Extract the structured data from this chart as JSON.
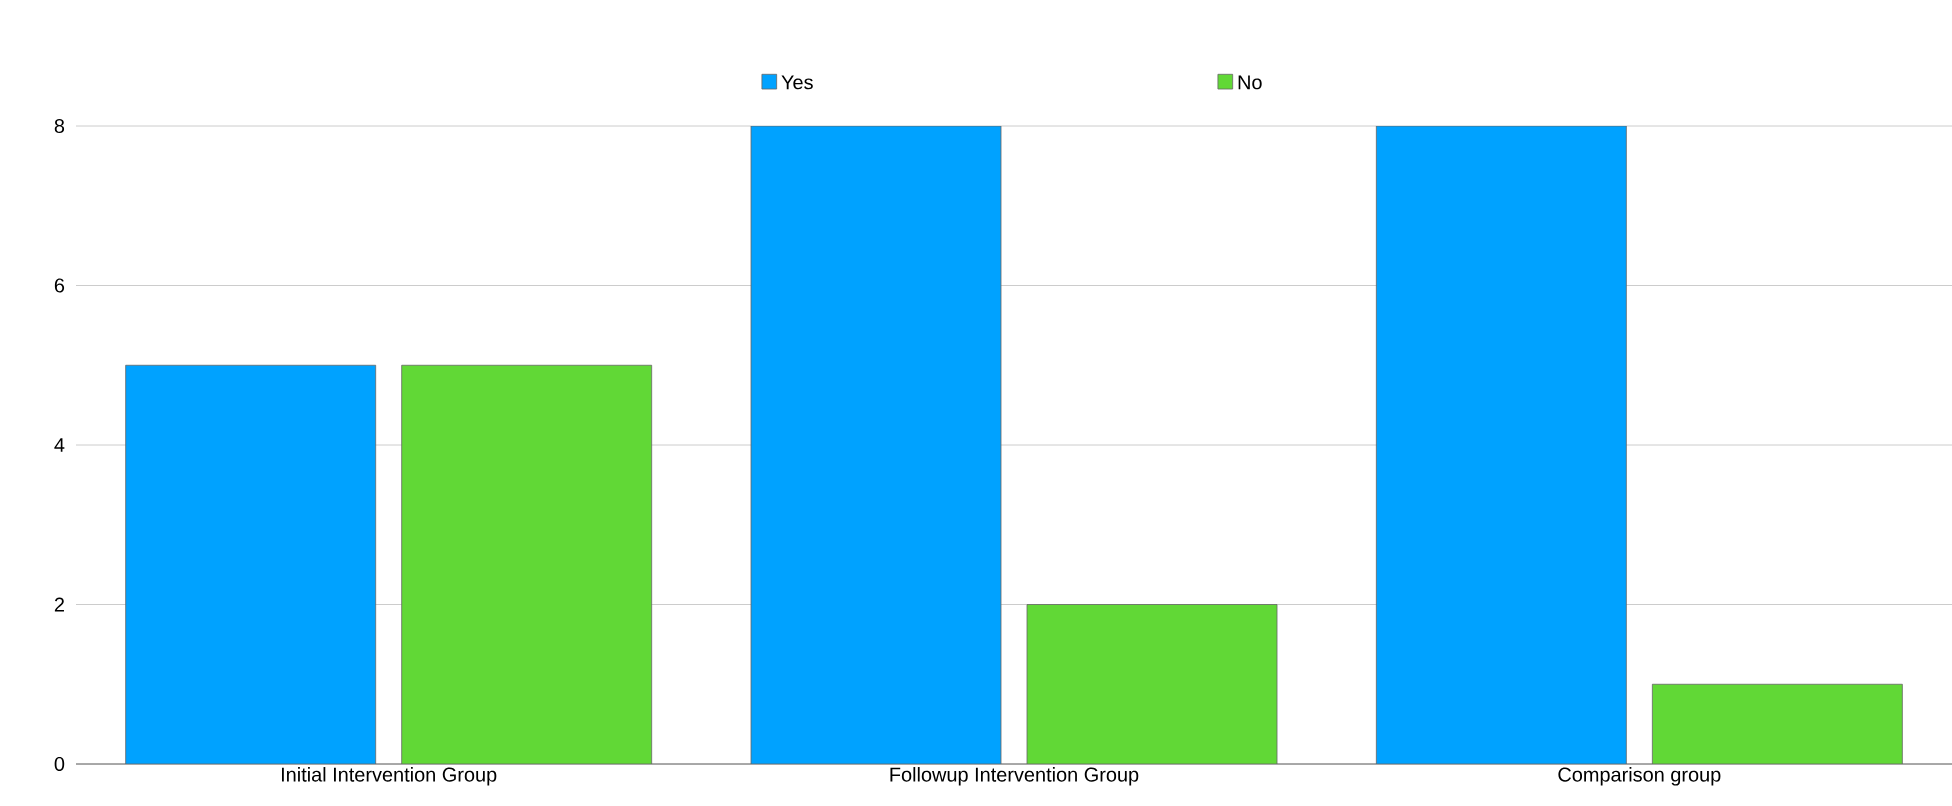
{
  "chart_data": {
    "type": "bar",
    "categories": [
      "Initial Intervention Group",
      "Followup Intervention Group",
      "Comparison group"
    ],
    "series": [
      {
        "name": "Yes",
        "color": "#00a2ff",
        "values": [
          5,
          8,
          8
        ]
      },
      {
        "name": "No",
        "color": "#61d836",
        "values": [
          5,
          2,
          1
        ]
      }
    ],
    "ylim": [
      0,
      8
    ],
    "yticks": [
      0,
      2,
      4,
      6,
      8
    ],
    "grid": "y",
    "legend": "top"
  }
}
